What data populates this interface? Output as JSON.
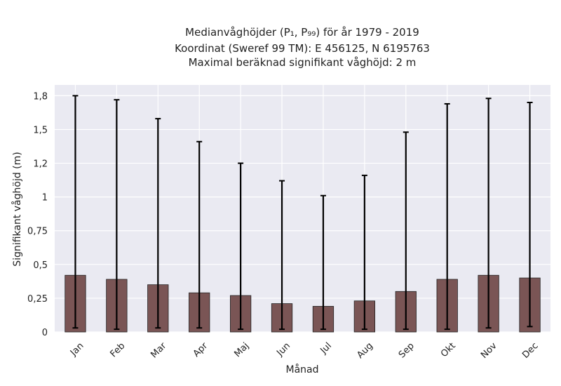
{
  "chart_data": {
    "type": "bar",
    "title_lines": [
      "Medianvåghöjder (P₁, P₉₉) för år 1979 - 2019",
      "Koordinat (Sweref 99 TM): E 456125, N 6195763",
      "Maximal beräknad signifikant våghöjd: 2 m"
    ],
    "xlabel": "Månad",
    "ylabel": "Signifikant våghöjd (m)",
    "categories": [
      "Jan",
      "Feb",
      "Mar",
      "Apr",
      "Maj",
      "Jun",
      "Jul",
      "Aug",
      "Sep",
      "Okt",
      "Nov",
      "Dec"
    ],
    "values": [
      0.42,
      0.39,
      0.35,
      0.29,
      0.27,
      0.21,
      0.19,
      0.23,
      0.3,
      0.39,
      0.42,
      0.4
    ],
    "p1": [
      0.03,
      0.02,
      0.03,
      0.03,
      0.02,
      0.02,
      0.02,
      0.02,
      0.02,
      0.02,
      0.03,
      0.04
    ],
    "p99": [
      1.75,
      1.72,
      1.58,
      1.41,
      1.25,
      1.12,
      1.01,
      1.16,
      1.48,
      1.69,
      1.73,
      1.7
    ],
    "ylim": [
      0,
      1.83
    ],
    "yticks": [
      0,
      0.25,
      0.5,
      0.75,
      1,
      1.25,
      1.5,
      1.75
    ],
    "ytick_labels": [
      "0",
      "0,25",
      "0,5",
      "0,75",
      "1",
      "1,2",
      "1,5",
      "1,8"
    ],
    "grid": true,
    "bar_color": "#7a5555",
    "bar_edge_color": "#222222",
    "errorbar_color": "#000000",
    "plot_background": "#eaeaf2"
  }
}
